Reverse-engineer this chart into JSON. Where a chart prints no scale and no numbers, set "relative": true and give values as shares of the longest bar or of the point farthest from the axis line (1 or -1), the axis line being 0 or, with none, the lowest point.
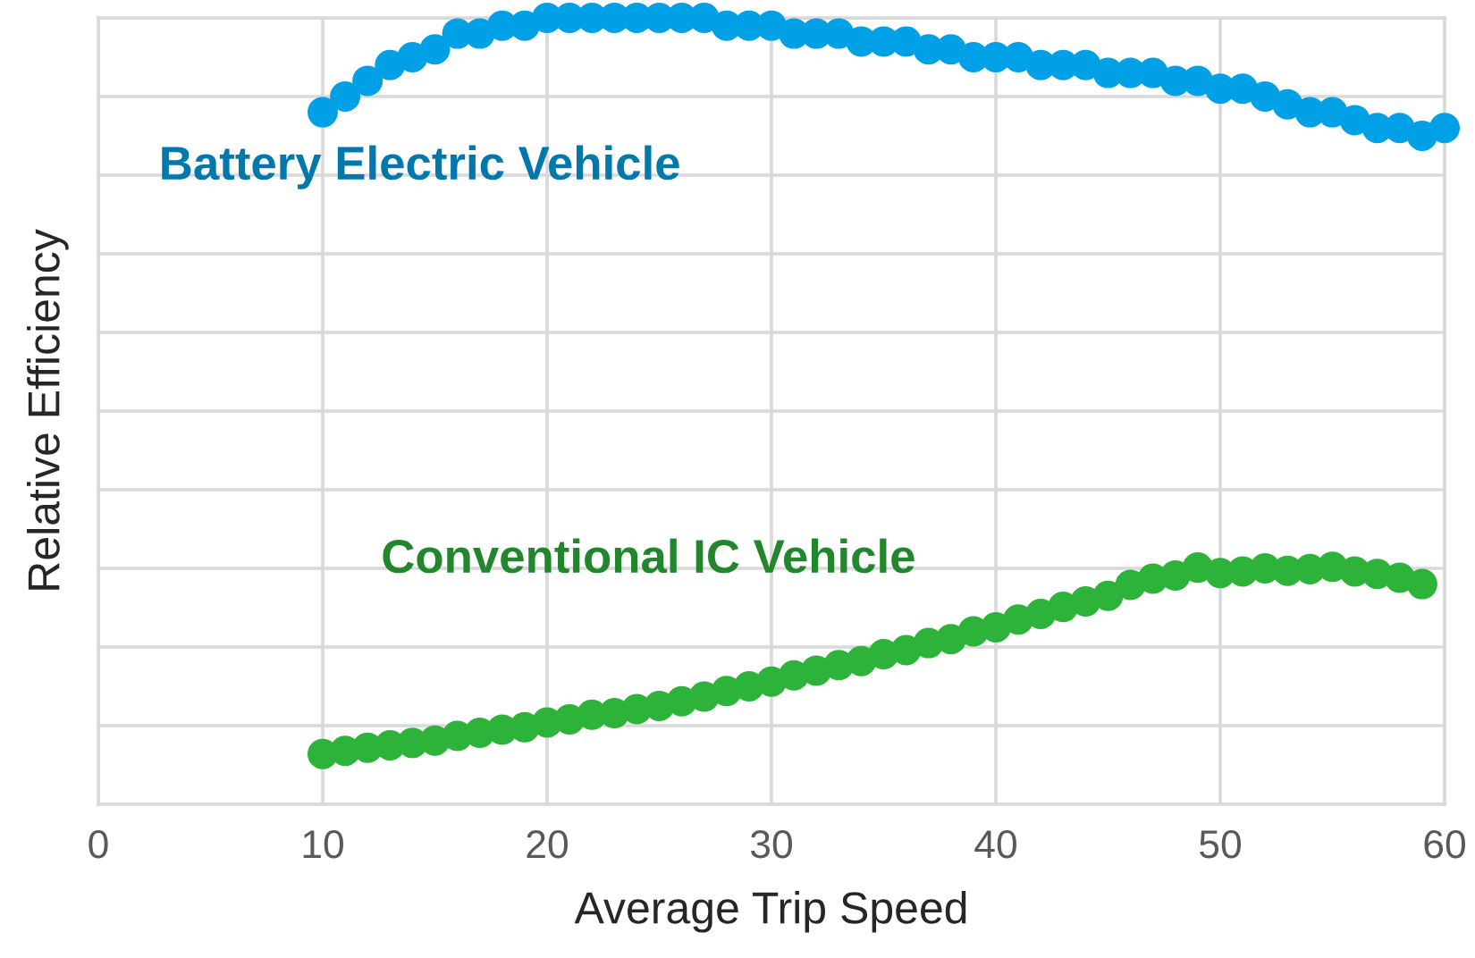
{
  "chart_data": {
    "type": "scatter",
    "relative": true,
    "xlabel": "Average Trip Speed",
    "ylabel": "Relative Efficiency",
    "xlim": [
      0,
      60
    ],
    "xticks": [
      0,
      10,
      20,
      30,
      40,
      50,
      60
    ],
    "grid": true,
    "marker": "circle",
    "tick_labels": "x",
    "series": [
      {
        "name": "Battery Electric Vehicle",
        "color": "#00a0e6",
        "x": [
          10,
          11,
          12,
          13,
          14,
          15,
          16,
          17,
          18,
          19,
          20,
          21,
          22,
          23,
          24,
          25,
          26,
          27,
          28,
          29,
          30,
          31,
          32,
          33,
          34,
          35,
          36,
          37,
          38,
          39,
          40,
          41,
          42,
          43,
          44,
          45,
          46,
          47,
          48,
          49,
          50,
          51,
          52,
          53,
          54,
          55,
          56,
          57,
          58,
          59,
          60
        ],
        "values": [
          0.88,
          0.9,
          0.92,
          0.94,
          0.95,
          0.96,
          0.98,
          0.98,
          0.99,
          0.99,
          1.0,
          1.0,
          1.0,
          1.0,
          1.0,
          1.0,
          1.0,
          1.0,
          0.99,
          0.99,
          0.99,
          0.98,
          0.98,
          0.98,
          0.97,
          0.97,
          0.97,
          0.96,
          0.96,
          0.95,
          0.95,
          0.95,
          0.94,
          0.94,
          0.94,
          0.93,
          0.93,
          0.93,
          0.92,
          0.92,
          0.91,
          0.91,
          0.9,
          0.89,
          0.88,
          0.88,
          0.87,
          0.86,
          0.86,
          0.85,
          0.86
        ]
      },
      {
        "name": "Conventional IC Vehicle",
        "color": "#2db33a",
        "x": [
          10,
          11,
          12,
          13,
          14,
          15,
          16,
          17,
          18,
          19,
          20,
          21,
          22,
          23,
          24,
          25,
          26,
          27,
          28,
          29,
          30,
          31,
          32,
          33,
          34,
          35,
          36,
          37,
          38,
          39,
          40,
          41,
          42,
          43,
          44,
          45,
          46,
          47,
          48,
          49,
          50,
          51,
          52,
          53,
          54,
          55,
          56,
          57,
          58,
          59
        ],
        "values": [
          0.064,
          0.068,
          0.072,
          0.075,
          0.078,
          0.081,
          0.087,
          0.091,
          0.095,
          0.098,
          0.104,
          0.108,
          0.114,
          0.116,
          0.121,
          0.125,
          0.131,
          0.137,
          0.144,
          0.15,
          0.156,
          0.164,
          0.17,
          0.177,
          0.182,
          0.191,
          0.196,
          0.205,
          0.21,
          0.22,
          0.225,
          0.235,
          0.242,
          0.251,
          0.258,
          0.265,
          0.279,
          0.287,
          0.291,
          0.301,
          0.294,
          0.296,
          0.3,
          0.297,
          0.299,
          0.302,
          0.296,
          0.293,
          0.288,
          0.28
        ]
      }
    ]
  }
}
